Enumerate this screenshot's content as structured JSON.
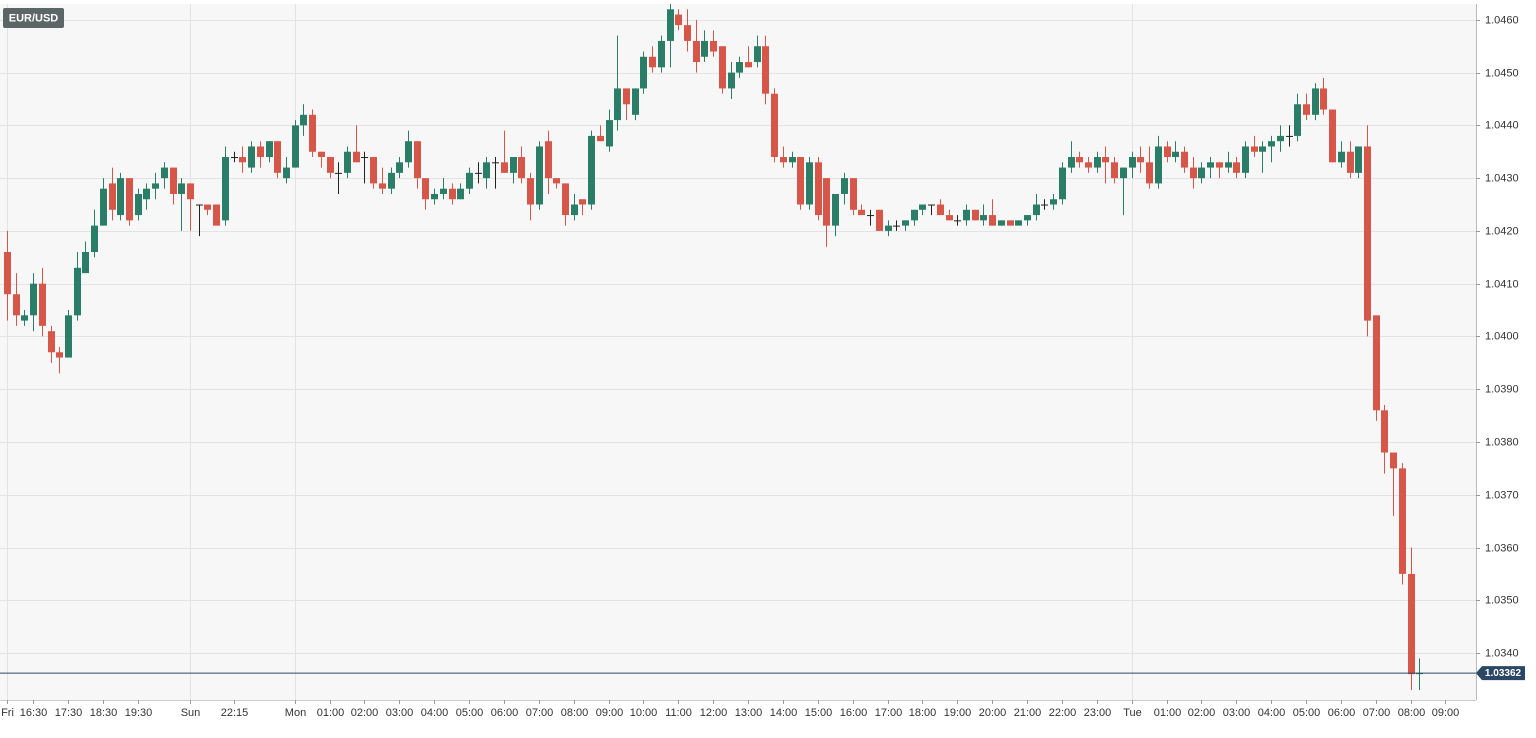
{
  "chart_data": {
    "type": "candlestick",
    "title": "EUR/USD",
    "up_color": "#2a7d67",
    "down_color": "#d6574a",
    "flat_color": "#222222",
    "grid": true,
    "ylim": [
      1.03311,
      1.0463
    ],
    "yticks": [
      {
        "value": 1.034,
        "label": "1.0340"
      },
      {
        "value": 1.035,
        "label": "1.0350"
      },
      {
        "value": 1.036,
        "label": "1.0360"
      },
      {
        "value": 1.037,
        "label": "1.0370"
      },
      {
        "value": 1.038,
        "label": "1.0380"
      },
      {
        "value": 1.039,
        "label": "1.0390"
      },
      {
        "value": 1.04,
        "label": "1.0400"
      },
      {
        "value": 1.041,
        "label": "1.0410"
      },
      {
        "value": 1.042,
        "label": "1.0420"
      },
      {
        "value": 1.043,
        "label": "1.0430"
      },
      {
        "value": 1.044,
        "label": "1.0440"
      },
      {
        "value": 1.045,
        "label": "1.0450"
      },
      {
        "value": 1.046,
        "label": "1.0460"
      }
    ],
    "xlim": [
      -0.8,
      168.5
    ],
    "xticks": [
      {
        "value": 0,
        "label": "Fri"
      },
      {
        "value": 3,
        "label": "16:30"
      },
      {
        "value": 7,
        "label": "17:30"
      },
      {
        "value": 11,
        "label": "18:30"
      },
      {
        "value": 15,
        "label": "19:30"
      },
      {
        "value": 21,
        "label": "Sun"
      },
      {
        "value": 26,
        "label": "22:15"
      },
      {
        "value": 33,
        "label": "Mon"
      },
      {
        "value": 37,
        "label": "01:00"
      },
      {
        "value": 41,
        "label": "02:00"
      },
      {
        "value": 45,
        "label": "03:00"
      },
      {
        "value": 49,
        "label": "04:00"
      },
      {
        "value": 53,
        "label": "05:00"
      },
      {
        "value": 57,
        "label": "06:00"
      },
      {
        "value": 61,
        "label": "07:00"
      },
      {
        "value": 65,
        "label": "08:00"
      },
      {
        "value": 69,
        "label": "09:00"
      },
      {
        "value": 73,
        "label": "10:00"
      },
      {
        "value": 77,
        "label": "11:00"
      },
      {
        "value": 81,
        "label": "12:00"
      },
      {
        "value": 85,
        "label": "13:00"
      },
      {
        "value": 89,
        "label": "14:00"
      },
      {
        "value": 93,
        "label": "15:00"
      },
      {
        "value": 97,
        "label": "16:00"
      },
      {
        "value": 101,
        "label": "17:00"
      },
      {
        "value": 105,
        "label": "18:00"
      },
      {
        "value": 109,
        "label": "19:00"
      },
      {
        "value": 113,
        "label": "20:00"
      },
      {
        "value": 117,
        "label": "21:00"
      },
      {
        "value": 121,
        "label": "22:00"
      },
      {
        "value": 125,
        "label": "23:00"
      },
      {
        "value": 129,
        "label": "Tue"
      },
      {
        "value": 133,
        "label": "01:00"
      },
      {
        "value": 137,
        "label": "02:00"
      },
      {
        "value": 141,
        "label": "03:00"
      },
      {
        "value": 145,
        "label": "04:00"
      },
      {
        "value": 149,
        "label": "05:00"
      },
      {
        "value": 153,
        "label": "06:00"
      },
      {
        "value": 157,
        "label": "07:00"
      },
      {
        "value": 161,
        "label": "08:00"
      },
      {
        "value": 165,
        "label": "09:00"
      }
    ],
    "open": [
      1.0416,
      1.0408,
      1.0403,
      1.0404,
      1.041,
      1.0401,
      1.0397,
      1.0396,
      1.0404,
      1.0412,
      1.0416,
      1.0421,
      1.0429,
      1.0423,
      1.043,
      1.0423,
      1.0426,
      1.0428,
      1.043,
      1.0432,
      1.0427,
      1.0429,
      1.0425,
      1.0425,
      1.0425,
      1.0422,
      1.0434,
      1.0434,
      1.0432,
      1.0436,
      1.0434,
      1.0437,
      1.043,
      1.0432,
      1.044,
      1.0442,
      1.0435,
      1.0434,
      1.0431,
      1.0431,
      1.0435,
      1.0434,
      1.0434,
      1.0429,
      1.0428,
      1.0431,
      1.0433,
      1.0437,
      1.043,
      1.0426,
      1.0427,
      1.0428,
      1.0426,
      1.0428,
      1.0431,
      1.043,
      1.0433,
      1.0433,
      1.0431,
      1.0434,
      1.043,
      1.0425,
      1.0437,
      1.043,
      1.0429,
      1.0423,
      1.0426,
      1.0425,
      1.0438,
      1.0436,
      1.0441,
      1.0447,
      1.0442,
      1.0447,
      1.0453,
      1.0451,
      1.0456,
      1.0461,
      1.0459,
      1.0456,
      1.0453,
      1.0456,
      1.0455,
      1.0447,
      1.045,
      1.0452,
      1.0452,
      1.0455,
      1.0446,
      1.0434,
      1.0433,
      1.0434,
      1.0425,
      1.0433,
      1.043,
      1.0421,
      1.0427,
      1.043,
      1.0424,
      1.0423,
      1.0424,
      1.042,
      1.0421,
      1.0421,
      1.0422,
      1.0424,
      1.0425,
      1.0425,
      1.0423,
      1.0422,
      1.0422,
      1.0424,
      1.0422,
      1.0423,
      1.0421,
      1.0422,
      1.0421,
      1.0422,
      1.0423,
      1.0425,
      1.0425,
      1.0426,
      1.0432,
      1.0434,
      1.0433,
      1.0432,
      1.0434,
      1.0433,
      1.043,
      1.0432,
      1.0434,
      1.0433,
      1.0429,
      1.0436,
      1.0434,
      1.0435,
      1.0432,
      1.043,
      1.0432,
      1.0433,
      1.0432,
      1.0433,
      1.0431,
      1.0436,
      1.0435,
      1.0436,
      1.0437,
      1.0438,
      1.0438,
      1.0444,
      1.0442,
      1.0447,
      1.0443,
      1.0433,
      1.0435,
      1.0431,
      1.0436,
      1.0404,
      1.0386,
      1.0378,
      1.0375,
      1.0355,
      1.0336
    ],
    "high": [
      1.042,
      1.0412,
      1.0405,
      1.0412,
      1.0413,
      1.0402,
      1.0398,
      1.0405,
      1.0416,
      1.0418,
      1.0424,
      1.043,
      1.0432,
      1.0431,
      1.043,
      1.0428,
      1.0429,
      1.0431,
      1.0433,
      1.0432,
      1.043,
      1.0429,
      1.0425,
      1.0425,
      1.0425,
      1.0436,
      1.0435,
      1.0436,
      1.0437,
      1.0437,
      1.0437,
      1.0437,
      1.0434,
      1.0441,
      1.0444,
      1.0443,
      1.0435,
      1.0434,
      1.0433,
      1.0436,
      1.044,
      1.0435,
      1.0434,
      1.0432,
      1.0432,
      1.0434,
      1.0439,
      1.0437,
      1.043,
      1.0428,
      1.043,
      1.0429,
      1.0429,
      1.0432,
      1.0433,
      1.0434,
      1.0434,
      1.0439,
      1.0434,
      1.0436,
      1.0431,
      1.0437,
      1.0439,
      1.043,
      1.0429,
      1.0427,
      1.0426,
      1.0439,
      1.044,
      1.0443,
      1.0457,
      1.0447,
      1.0447,
      1.0454,
      1.0455,
      1.0457,
      1.0463,
      1.0462,
      1.0462,
      1.046,
      1.0458,
      1.0458,
      1.0455,
      1.0452,
      1.0453,
      1.0455,
      1.0457,
      1.0457,
      1.0447,
      1.0436,
      1.0435,
      1.0434,
      1.0434,
      1.0434,
      1.043,
      1.0427,
      1.0431,
      1.043,
      1.0425,
      1.0424,
      1.0424,
      1.0422,
      1.0422,
      1.0422,
      1.0424,
      1.0425,
      1.0425,
      1.0426,
      1.0424,
      1.0423,
      1.0425,
      1.0424,
      1.0425,
      1.0426,
      1.0422,
      1.0422,
      1.0422,
      1.0423,
      1.0427,
      1.0426,
      1.0427,
      1.0433,
      1.0437,
      1.0435,
      1.0434,
      1.0435,
      1.0436,
      1.0434,
      1.0432,
      1.0435,
      1.0436,
      1.0436,
      1.0438,
      1.0437,
      1.0437,
      1.0436,
      1.0434,
      1.0433,
      1.0434,
      1.0433,
      1.0435,
      1.0434,
      1.0437,
      1.0438,
      1.0437,
      1.0438,
      1.044,
      1.044,
      1.0446,
      1.0446,
      1.0448,
      1.0449,
      1.0443,
      1.0437,
      1.0437,
      1.0436,
      1.044,
      1.0404,
      1.0387,
      1.0378,
      1.0376,
      1.036,
      1.0339
    ],
    "low": [
      1.0403,
      1.0402,
      1.0402,
      1.0401,
      1.04,
      1.0395,
      1.0393,
      1.0396,
      1.0403,
      1.0412,
      1.0415,
      1.0421,
      1.0422,
      1.0422,
      1.0421,
      1.0422,
      1.0424,
      1.0426,
      1.0428,
      1.0425,
      1.042,
      1.042,
      1.0419,
      1.0423,
      1.0421,
      1.0421,
      1.0433,
      1.0431,
      1.0431,
      1.0432,
      1.0433,
      1.043,
      1.0429,
      1.0432,
      1.0438,
      1.0434,
      1.0432,
      1.043,
      1.0427,
      1.043,
      1.0433,
      1.0429,
      1.0428,
      1.0427,
      1.0427,
      1.043,
      1.0432,
      1.0428,
      1.0424,
      1.0425,
      1.0426,
      1.0425,
      1.0426,
      1.0427,
      1.0429,
      1.0428,
      1.0428,
      1.0431,
      1.0429,
      1.0429,
      1.0422,
      1.0424,
      1.0427,
      1.0428,
      1.0421,
      1.0422,
      1.0423,
      1.0424,
      1.0437,
      1.0435,
      1.0439,
      1.0441,
      1.0441,
      1.0446,
      1.045,
      1.045,
      1.0451,
      1.0458,
      1.0454,
      1.045,
      1.0452,
      1.0453,
      1.0446,
      1.0445,
      1.0449,
      1.0451,
      1.0451,
      1.0444,
      1.0433,
      1.0432,
      1.0432,
      1.0424,
      1.0424,
      1.0422,
      1.0417,
      1.0419,
      1.0425,
      1.0423,
      1.0423,
      1.0421,
      1.042,
      1.0419,
      1.042,
      1.042,
      1.0421,
      1.0423,
      1.0423,
      1.0423,
      1.0422,
      1.0421,
      1.0421,
      1.0422,
      1.0421,
      1.0421,
      1.0421,
      1.0421,
      1.0421,
      1.0421,
      1.0422,
      1.0424,
      1.0424,
      1.0425,
      1.0431,
      1.0432,
      1.0431,
      1.0431,
      1.0429,
      1.0429,
      1.0423,
      1.043,
      1.0431,
      1.0428,
      1.0428,
      1.0433,
      1.0433,
      1.0431,
      1.0428,
      1.0429,
      1.043,
      1.043,
      1.0431,
      1.043,
      1.043,
      1.0434,
      1.0431,
      1.0433,
      1.0435,
      1.0436,
      1.0437,
      1.0441,
      1.0441,
      1.0442,
      1.0433,
      1.0432,
      1.043,
      1.043,
      1.04,
      1.0384,
      1.0374,
      1.0366,
      1.0353,
      1.0333,
      1.0333
    ],
    "close": [
      1.0408,
      1.0404,
      1.0404,
      1.041,
      1.0402,
      1.0397,
      1.0396,
      1.0404,
      1.0413,
      1.0416,
      1.0421,
      1.0428,
      1.0424,
      1.043,
      1.0422,
      1.0427,
      1.0428,
      1.0429,
      1.0432,
      1.0427,
      1.0429,
      1.0426,
      1.0425,
      1.0424,
      1.0421,
      1.0434,
      1.0434,
      1.0433,
      1.0436,
      1.0434,
      1.0437,
      1.0431,
      1.0432,
      1.044,
      1.0442,
      1.0435,
      1.0434,
      1.0431,
      1.0431,
      1.0435,
      1.0433,
      1.0434,
      1.0429,
      1.0428,
      1.0431,
      1.0433,
      1.0437,
      1.043,
      1.0426,
      1.0427,
      1.0428,
      1.0426,
      1.0428,
      1.0431,
      1.0431,
      1.0433,
      1.0433,
      1.0431,
      1.0434,
      1.043,
      1.0425,
      1.0436,
      1.043,
      1.0429,
      1.0423,
      1.0425,
      1.0425,
      1.0438,
      1.0437,
      1.0441,
      1.0447,
      1.0444,
      1.0447,
      1.0453,
      1.0451,
      1.0456,
      1.0462,
      1.0459,
      1.0456,
      1.0452,
      1.0456,
      1.0454,
      1.0447,
      1.045,
      1.0452,
      1.0451,
      1.0455,
      1.0446,
      1.0434,
      1.0433,
      1.0434,
      1.0425,
      1.0433,
      1.0423,
      1.0421,
      1.0427,
      1.043,
      1.0424,
      1.0423,
      1.0423,
      1.042,
      1.0421,
      1.0421,
      1.0422,
      1.0424,
      1.0425,
      1.0425,
      1.0423,
      1.0422,
      1.0422,
      1.0424,
      1.0422,
      1.0423,
      1.0421,
      1.0422,
      1.0421,
      1.0422,
      1.0423,
      1.0425,
      1.0425,
      1.0426,
      1.0432,
      1.0434,
      1.0433,
      1.0432,
      1.0434,
      1.0433,
      1.043,
      1.0432,
      1.0434,
      1.0433,
      1.0429,
      1.0436,
      1.0434,
      1.0435,
      1.0432,
      1.043,
      1.0432,
      1.0433,
      1.0432,
      1.0433,
      1.0431,
      1.0436,
      1.0435,
      1.0436,
      1.0437,
      1.0438,
      1.0438,
      1.0444,
      1.0442,
      1.0447,
      1.0443,
      1.0433,
      1.0435,
      1.0431,
      1.0436,
      1.0403,
      1.0386,
      1.0378,
      1.0375,
      1.0355,
      1.0336,
      1.03362
    ]
  }
}
